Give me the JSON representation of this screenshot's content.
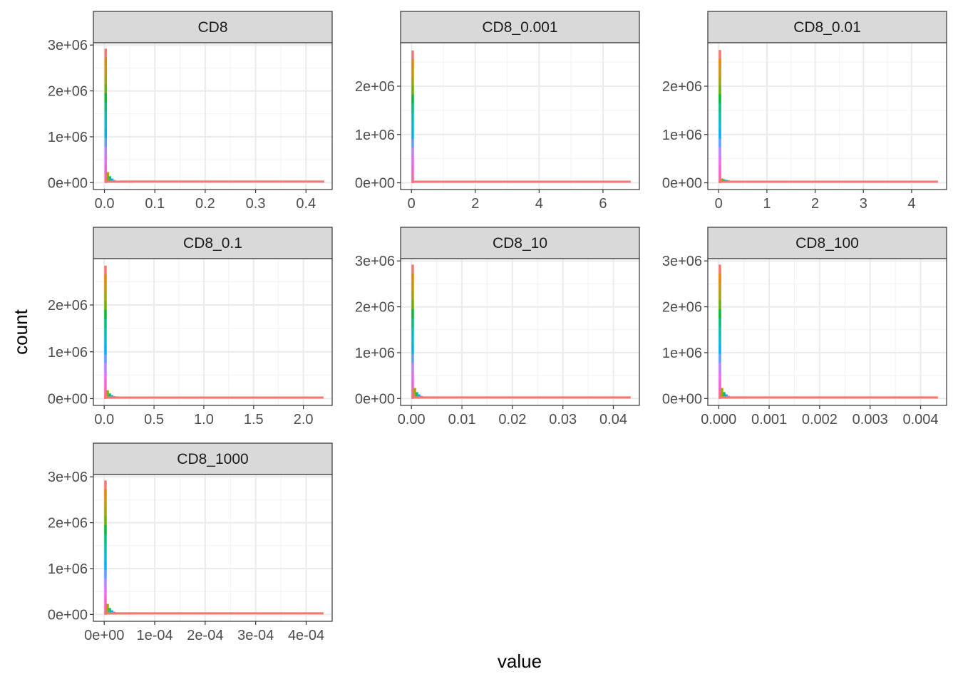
{
  "figure": {
    "x_title": "value",
    "y_title": "count",
    "rainbow_colors": [
      "#F8766D",
      "#E58700",
      "#C99800",
      "#A3A500",
      "#6BB100",
      "#00BA38",
      "#00BF7D",
      "#00C0AF",
      "#00BCD8",
      "#00B0F6",
      "#619CFF",
      "#B983FF",
      "#E76BF3",
      "#FD61D1",
      "#FF67A4"
    ]
  },
  "chart_data": [
    {
      "type": "bar",
      "subtype": "histogram",
      "panel": "CD8",
      "xlim": [
        -0.022,
        0.452
      ],
      "ylim": [
        -150000,
        3050000
      ],
      "x_ticks": [
        0.0,
        0.1,
        0.2,
        0.3,
        0.4
      ],
      "x_tick_labels": [
        "0.0",
        "0.1",
        "0.2",
        "0.3",
        "0.4"
      ],
      "y_ticks": [
        0,
        1000000,
        2000000,
        3000000
      ],
      "y_tick_labels": [
        "0e+00",
        "1e+06",
        "2e+06",
        "3e+06"
      ],
      "bin_width": 0.00432,
      "x": [
        0.0,
        0.0043,
        0.0086,
        0.013,
        0.0173,
        0.0216,
        0.0259,
        0.0302,
        0.0346,
        0.0389,
        0.0432,
        0.0475,
        0.0518,
        0.25,
        0.432
      ],
      "values": [
        2920000,
        230000,
        140000,
        90000,
        60000,
        42000,
        30000,
        22000,
        16000,
        12000,
        9000,
        6000,
        4000,
        3000,
        2000
      ]
    },
    {
      "type": "bar",
      "subtype": "histogram",
      "panel": "CD8_0.001",
      "xlim": [
        -0.34,
        7.14
      ],
      "ylim": [
        -140000,
        2900000
      ],
      "x_ticks": [
        0,
        2,
        4,
        6
      ],
      "x_tick_labels": [
        "0",
        "2",
        "4",
        "6"
      ],
      "y_ticks": [
        0,
        1000000,
        2000000
      ],
      "y_tick_labels": [
        "0e+00",
        "1e+06",
        "2e+06"
      ],
      "bin_width": 0.068,
      "x": [
        0.0,
        0.07,
        0.14,
        0.2,
        0.27,
        0.5,
        1.0,
        1.5,
        2.0,
        2.5,
        3.0,
        3.5,
        4.0,
        4.5,
        6.8
      ],
      "values": [
        2740000,
        38000,
        30000,
        26000,
        24000,
        22000,
        20000,
        18000,
        17000,
        16000,
        15000,
        14000,
        12000,
        8000,
        5000
      ]
    },
    {
      "type": "bar",
      "subtype": "histogram",
      "panel": "CD8_0.01",
      "xlim": [
        -0.225,
        4.725
      ],
      "ylim": [
        -140000,
        2900000
      ],
      "x_ticks": [
        0,
        1,
        2,
        3,
        4
      ],
      "x_tick_labels": [
        "0",
        "1",
        "2",
        "3",
        "4"
      ],
      "y_ticks": [
        0,
        1000000,
        2000000
      ],
      "y_tick_labels": [
        "0e+00",
        "1e+06",
        "2e+06"
      ],
      "bin_width": 0.045,
      "x": [
        0.0,
        0.05,
        0.09,
        0.14,
        0.18,
        0.25,
        0.4,
        0.6,
        0.8,
        1.0,
        1.3,
        1.6,
        2.0,
        2.3,
        4.5
      ],
      "values": [
        2750000,
        90000,
        70000,
        60000,
        50000,
        40000,
        32000,
        25000,
        20000,
        16000,
        13000,
        11000,
        9000,
        6000,
        4000
      ]
    },
    {
      "type": "bar",
      "subtype": "histogram",
      "panel": "CD8_0.1",
      "xlim": [
        -0.109,
        2.289
      ],
      "ylim": [
        -145000,
        2990000
      ],
      "x_ticks": [
        0.0,
        0.5,
        1.0,
        1.5,
        2.0
      ],
      "x_tick_labels": [
        "0.0",
        "0.5",
        "1.0",
        "1.5",
        "2.0"
      ],
      "y_ticks": [
        0,
        1000000,
        2000000
      ],
      "y_tick_labels": [
        "0e+00",
        "1e+06",
        "2e+06"
      ],
      "bin_width": 0.0218,
      "x": [
        0.0,
        0.022,
        0.044,
        0.065,
        0.087,
        0.109,
        0.15,
        0.2,
        0.25,
        0.3,
        0.35,
        0.4,
        0.6,
        1.0,
        2.18
      ],
      "values": [
        2840000,
        180000,
        110000,
        75000,
        55000,
        42000,
        33000,
        26000,
        21000,
        17000,
        14000,
        11000,
        8000,
        5000,
        3000
      ]
    },
    {
      "type": "bar",
      "subtype": "histogram",
      "panel": "CD8_10",
      "xlim": [
        -0.00215,
        0.04515
      ],
      "ylim": [
        -150000,
        3050000
      ],
      "x_ticks": [
        0.0,
        0.01,
        0.02,
        0.03,
        0.04
      ],
      "x_tick_labels": [
        "0.00",
        "0.01",
        "0.02",
        "0.03",
        "0.04"
      ],
      "y_ticks": [
        0,
        1000000,
        2000000,
        3000000
      ],
      "y_tick_labels": [
        "0e+00",
        "1e+06",
        "2e+06",
        "3e+06"
      ],
      "bin_width": 0.00043,
      "x": [
        0.0,
        0.00043,
        0.00086,
        0.00129,
        0.00172,
        0.00215,
        0.00258,
        0.00301,
        0.00344,
        0.00387,
        0.0043,
        0.00473,
        0.00516,
        0.025,
        0.043
      ],
      "values": [
        2920000,
        230000,
        140000,
        90000,
        60000,
        42000,
        30000,
        22000,
        16000,
        12000,
        9000,
        6000,
        4000,
        3000,
        2000
      ]
    },
    {
      "type": "bar",
      "subtype": "histogram",
      "panel": "CD8_100",
      "xlim": [
        -0.000215,
        0.004515
      ],
      "ylim": [
        -150000,
        3050000
      ],
      "x_ticks": [
        0.0,
        0.001,
        0.002,
        0.003,
        0.004
      ],
      "x_tick_labels": [
        "0.000",
        "0.001",
        "0.002",
        "0.003",
        "0.004"
      ],
      "y_ticks": [
        0,
        1000000,
        2000000,
        3000000
      ],
      "y_tick_labels": [
        "0e+00",
        "1e+06",
        "2e+06",
        "3e+06"
      ],
      "bin_width": 4.3e-05,
      "x": [
        0.0,
        4.3e-05,
        8.6e-05,
        0.000129,
        0.000172,
        0.000215,
        0.000258,
        0.000301,
        0.000344,
        0.000387,
        0.00043,
        0.000473,
        0.000516,
        0.0025,
        0.0043
      ],
      "values": [
        2920000,
        230000,
        140000,
        90000,
        60000,
        42000,
        30000,
        22000,
        16000,
        12000,
        9000,
        6000,
        4000,
        3000,
        2000
      ]
    },
    {
      "type": "bar",
      "subtype": "histogram",
      "panel": "CD8_1000",
      "xlim": [
        -2.15e-05,
        0.0004515
      ],
      "ylim": [
        -150000,
        3050000
      ],
      "x_ticks": [
        0,
        0.0001,
        0.0002,
        0.0003,
        0.0004
      ],
      "x_tick_labels": [
        "0e+00",
        "1e-04",
        "2e-04",
        "3e-04",
        "4e-04"
      ],
      "y_ticks": [
        0,
        1000000,
        2000000,
        3000000
      ],
      "y_tick_labels": [
        "0e+00",
        "1e+06",
        "2e+06",
        "3e+06"
      ],
      "bin_width": 4.3e-06,
      "x": [
        0.0,
        4.3e-06,
        8.6e-06,
        1.29e-05,
        1.72e-05,
        2.15e-05,
        2.58e-05,
        3.01e-05,
        3.44e-05,
        3.87e-05,
        4.3e-05,
        4.73e-05,
        5.16e-05,
        0.00025,
        0.00043
      ],
      "values": [
        2920000,
        230000,
        140000,
        90000,
        60000,
        42000,
        30000,
        22000,
        16000,
        12000,
        9000,
        6000,
        4000,
        3000,
        2000
      ]
    }
  ]
}
